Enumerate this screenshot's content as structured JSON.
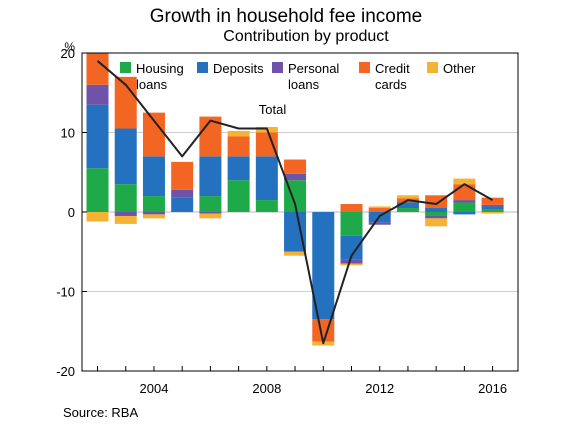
{
  "chart_data": {
    "type": "bar",
    "title": "Growth in household fee income",
    "subtitle": "Contribution by product",
    "y_unit": "%",
    "ylim": [
      -20,
      20
    ],
    "y_ticks": [
      20,
      10,
      0,
      -10,
      -20
    ],
    "x_tick_labels": [
      "2004",
      "2008",
      "2012",
      "2016"
    ],
    "x_tick_years": [
      2004,
      2008,
      2012,
      2016
    ],
    "years": [
      2002,
      2003,
      2004,
      2005,
      2006,
      2007,
      2008,
      2009,
      2010,
      2011,
      2012,
      2013,
      2014,
      2015,
      2016
    ],
    "series": [
      {
        "name": "Housing loans",
        "color": "#1faa4a",
        "values": [
          5.5,
          3.5,
          2.0,
          0.0,
          2.0,
          4.0,
          1.5,
          4.0,
          0.0,
          -3.0,
          0.0,
          0.5,
          -0.5,
          1.2,
          0.3
        ]
      },
      {
        "name": "Deposits",
        "color": "#2471bf",
        "values": [
          8.0,
          7.0,
          5.0,
          1.8,
          5.0,
          3.0,
          5.5,
          -5.0,
          -13.5,
          -3.0,
          -1.3,
          0.7,
          0.5,
          -0.3,
          0.4
        ]
      },
      {
        "name": "Personal loans",
        "color": "#6f53a8",
        "values": [
          2.5,
          -0.5,
          -0.3,
          1.0,
          -0.2,
          0.0,
          0.0,
          0.8,
          0.0,
          -0.5,
          -0.3,
          0.0,
          -0.3,
          0.3,
          0.2
        ]
      },
      {
        "name": "Credit cards",
        "color": "#f26522",
        "values": [
          4.0,
          6.5,
          5.5,
          3.5,
          5.0,
          2.5,
          3.0,
          1.8,
          -2.8,
          1.0,
          0.5,
          0.5,
          1.6,
          2.0,
          0.9
        ]
      },
      {
        "name": "Other",
        "color": "#f5b335",
        "values": [
          -1.2,
          -1.0,
          -0.5,
          0.0,
          -0.6,
          0.7,
          0.7,
          -0.5,
          -0.5,
          -0.2,
          0.2,
          0.4,
          -1.0,
          0.7,
          -0.2
        ]
      }
    ],
    "total": {
      "name": "Total",
      "color": "#222222",
      "values": [
        19.0,
        16.0,
        11.5,
        7.0,
        11.5,
        10.5,
        10.5,
        1.0,
        -16.5,
        -5.5,
        -0.5,
        1.5,
        1.0,
        3.5,
        1.5
      ]
    },
    "legend": [
      "Housing\nloans",
      "Deposits",
      "Personal\nloans",
      "Credit\ncards",
      "Other"
    ],
    "legend_position": "top",
    "grid": true,
    "source": "Source: RBA"
  }
}
